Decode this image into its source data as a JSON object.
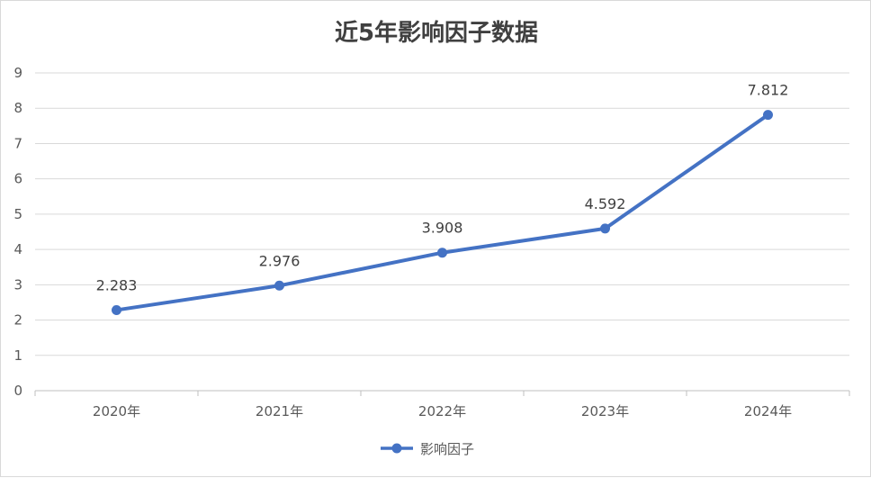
{
  "chart_data": {
    "type": "line",
    "title": "近5年影响因子数据",
    "xlabel": "",
    "ylabel": "",
    "categories": [
      "2020年",
      "2021年",
      "2022年",
      "2023年",
      "2024年"
    ],
    "series": [
      {
        "name": "影响因子",
        "values": [
          2.283,
          2.976,
          3.908,
          4.592,
          7.812
        ]
      }
    ],
    "data_labels": [
      "2.283",
      "2.976",
      "3.908",
      "4.592",
      "7.812"
    ],
    "ylim": [
      0,
      9
    ],
    "y_ticks": [
      "0",
      "1",
      "2",
      "3",
      "4",
      "5",
      "6",
      "7",
      "8",
      "9"
    ],
    "grid": true,
    "legend_position": "bottom",
    "colors": {
      "series": "#4472c4",
      "grid": "#d9d9d9",
      "axis": "#bfbfbf"
    }
  }
}
